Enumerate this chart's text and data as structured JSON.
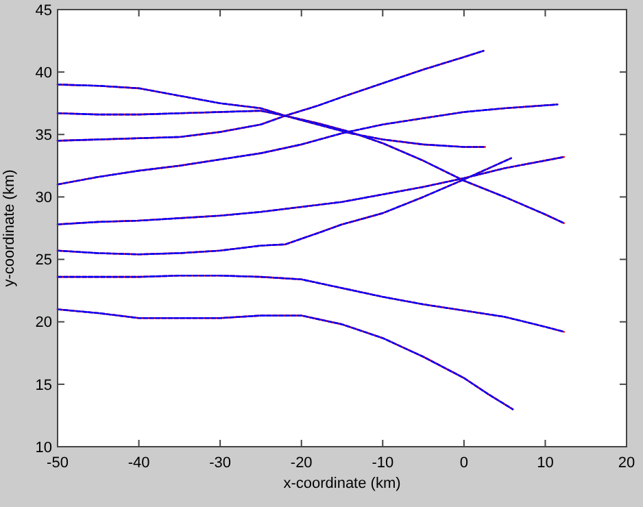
{
  "chart_data": {
    "type": "line",
    "xlabel": "x-coordinate (km)",
    "ylabel": "y-coordinate (km)",
    "xlim": [
      -50,
      20
    ],
    "ylim": [
      10,
      45
    ],
    "xticks": [
      -50,
      -40,
      -30,
      -20,
      -10,
      0,
      10,
      20
    ],
    "yticks": [
      10,
      15,
      20,
      25,
      30,
      35,
      40,
      45
    ],
    "grid": false,
    "marker": "none",
    "series": [
      {
        "color": "#ff0000",
        "line_style": "solid",
        "x": [
          -50,
          -45,
          -40,
          -35,
          -30,
          -25,
          -22,
          -18,
          -14,
          -10,
          -5,
          0,
          5,
          10,
          12.3
        ],
        "values": [
          39,
          38.9,
          38.7,
          38.1,
          37.5,
          37.1,
          36.5,
          35.9,
          35.2,
          34.3,
          32.9,
          31.3,
          30,
          28.6,
          27.9
        ]
      },
      {
        "color": "#0000ff",
        "line_style": "dashed",
        "x": [
          -50,
          -45,
          -40,
          -35,
          -30,
          -25,
          -22,
          -18,
          -14,
          -10,
          -5,
          0,
          5,
          10,
          12.3
        ],
        "values": [
          39,
          38.9,
          38.7,
          38.1,
          37.5,
          37.1,
          36.5,
          35.9,
          35.2,
          34.3,
          32.9,
          31.3,
          30,
          28.6,
          27.9
        ]
      },
      {
        "color": "#ff0000",
        "line_style": "solid",
        "x": [
          -50,
          -45,
          -40,
          -35,
          -30,
          -25,
          -22,
          -18,
          -14,
          -10,
          -5,
          0,
          2.6
        ],
        "values": [
          36.7,
          36.6,
          36.6,
          36.7,
          36.8,
          36.9,
          36.5,
          35.8,
          35.1,
          34.6,
          34.2,
          34,
          34
        ]
      },
      {
        "color": "#0000ff",
        "line_style": "dashed",
        "x": [
          -50,
          -45,
          -40,
          -35,
          -30,
          -25,
          -22,
          -18,
          -14,
          -10,
          -5,
          0,
          2.6
        ],
        "values": [
          36.7,
          36.6,
          36.6,
          36.7,
          36.8,
          36.9,
          36.5,
          35.8,
          35.1,
          34.6,
          34.2,
          34,
          34
        ]
      },
      {
        "color": "#ff0000",
        "line_style": "solid",
        "x": [
          -50,
          -45,
          -40,
          -35,
          -30,
          -25,
          -22,
          -18,
          -15,
          -10,
          -5,
          0,
          2.4
        ],
        "values": [
          34.5,
          34.6,
          34.7,
          34.8,
          35.2,
          35.8,
          36.5,
          37.3,
          38,
          39.1,
          40.2,
          41.2,
          41.7
        ]
      },
      {
        "color": "#0000ff",
        "line_style": "dashed",
        "x": [
          -50,
          -45,
          -40,
          -35,
          -30,
          -25,
          -22,
          -18,
          -15,
          -10,
          -5,
          0,
          2.4
        ],
        "values": [
          34.5,
          34.6,
          34.7,
          34.8,
          35.2,
          35.8,
          36.5,
          37.3,
          38,
          39.1,
          40.2,
          41.2,
          41.7
        ]
      },
      {
        "color": "#ff0000",
        "line_style": "solid",
        "x": [
          -50,
          -45,
          -40,
          -35,
          -30,
          -25,
          -20,
          -15,
          -10,
          -5,
          0,
          5,
          11.5
        ],
        "values": [
          31,
          31.6,
          32.1,
          32.5,
          33,
          33.5,
          34.2,
          35.1,
          35.8,
          36.3,
          36.8,
          37.1,
          37.4
        ]
      },
      {
        "color": "#0000ff",
        "line_style": "dashed",
        "x": [
          -50,
          -45,
          -40,
          -35,
          -30,
          -25,
          -20,
          -15,
          -10,
          -5,
          0,
          5,
          11.5
        ],
        "values": [
          31,
          31.6,
          32.1,
          32.5,
          33,
          33.5,
          34.2,
          35.1,
          35.8,
          36.3,
          36.8,
          37.1,
          37.4
        ]
      },
      {
        "color": "#ff0000",
        "line_style": "solid",
        "x": [
          -50,
          -45,
          -40,
          -35,
          -30,
          -25,
          -20,
          -15,
          -10,
          -5,
          0,
          5,
          12.3
        ],
        "values": [
          27.8,
          28,
          28.1,
          28.3,
          28.5,
          28.8,
          29.2,
          29.6,
          30.2,
          30.8,
          31.5,
          32.3,
          33.2
        ]
      },
      {
        "color": "#0000ff",
        "line_style": "dashed",
        "x": [
          -50,
          -45,
          -40,
          -35,
          -30,
          -25,
          -20,
          -15,
          -10,
          -5,
          0,
          5,
          12.3
        ],
        "values": [
          27.8,
          28,
          28.1,
          28.3,
          28.5,
          28.8,
          29.2,
          29.6,
          30.2,
          30.8,
          31.5,
          32.3,
          33.2
        ]
      },
      {
        "color": "#ff0000",
        "line_style": "solid",
        "x": [
          -50,
          -45,
          -40,
          -35,
          -30,
          -25,
          -22,
          -18,
          -15,
          -10,
          -5,
          0,
          5.8
        ],
        "values": [
          25.7,
          25.5,
          25.4,
          25.5,
          25.7,
          26.1,
          26.2,
          27.1,
          27.8,
          28.7,
          30,
          31.4,
          33.1
        ]
      },
      {
        "color": "#0000ff",
        "line_style": "dashed",
        "x": [
          -50,
          -45,
          -40,
          -35,
          -30,
          -25,
          -22,
          -18,
          -15,
          -10,
          -5,
          0,
          5.8
        ],
        "values": [
          25.7,
          25.5,
          25.4,
          25.5,
          25.7,
          26.1,
          26.2,
          27.1,
          27.8,
          28.7,
          30,
          31.4,
          33.1
        ]
      },
      {
        "color": "#ff0000",
        "line_style": "solid",
        "x": [
          -50,
          -45,
          -40,
          -35,
          -30,
          -25,
          -20,
          -15,
          -10,
          -5,
          0,
          5,
          10,
          12.3
        ],
        "values": [
          23.6,
          23.6,
          23.6,
          23.7,
          23.7,
          23.6,
          23.4,
          22.7,
          22,
          21.4,
          20.9,
          20.4,
          19.6,
          19.2
        ]
      },
      {
        "color": "#0000ff",
        "line_style": "dashed",
        "x": [
          -50,
          -45,
          -40,
          -35,
          -30,
          -25,
          -20,
          -15,
          -10,
          -5,
          0,
          5,
          10,
          12.3
        ],
        "values": [
          23.6,
          23.6,
          23.6,
          23.7,
          23.7,
          23.6,
          23.4,
          22.7,
          22,
          21.4,
          20.9,
          20.4,
          19.6,
          19.2
        ]
      },
      {
        "color": "#ff0000",
        "line_style": "solid",
        "x": [
          -50,
          -45,
          -40,
          -35,
          -30,
          -25,
          -20,
          -15,
          -10,
          -5,
          0,
          3,
          6
        ],
        "values": [
          21,
          20.7,
          20.3,
          20.3,
          20.3,
          20.5,
          20.5,
          19.8,
          18.7,
          17.2,
          15.5,
          14.2,
          13
        ]
      },
      {
        "color": "#0000ff",
        "line_style": "dashed",
        "x": [
          -50,
          -45,
          -40,
          -35,
          -30,
          -25,
          -20,
          -15,
          -10,
          -5,
          0,
          3,
          6
        ],
        "values": [
          21,
          20.7,
          20.3,
          20.3,
          20.3,
          20.5,
          20.5,
          19.8,
          18.7,
          17.2,
          15.5,
          14.2,
          13
        ]
      }
    ]
  }
}
